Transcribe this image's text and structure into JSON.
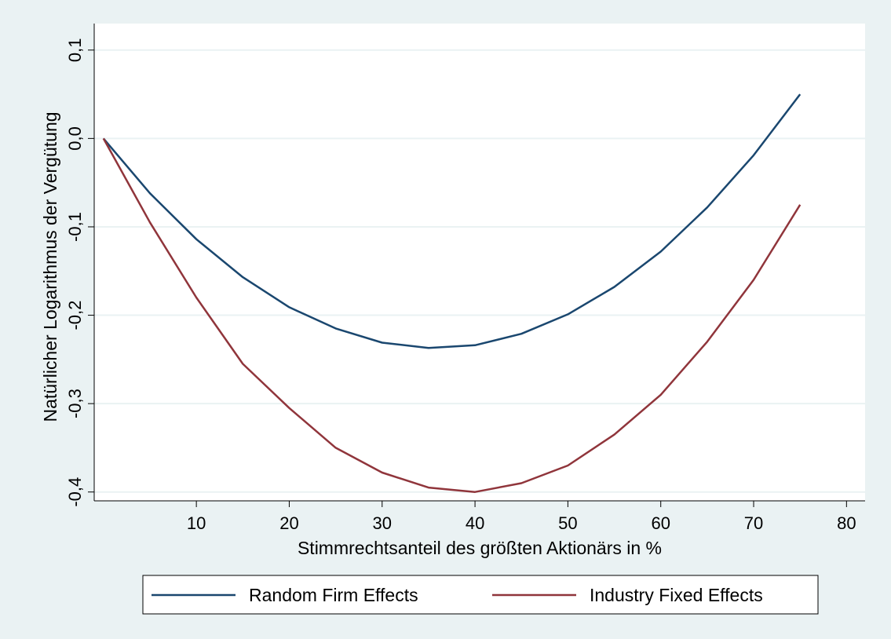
{
  "chart_data": {
    "type": "line",
    "title": "",
    "xlabel": "Stimmrechtsanteil des größten Aktionärs in %",
    "ylabel": "Natürlicher Logarithmus der Vergütung",
    "xlim": [
      -1,
      82
    ],
    "ylim": [
      -0.41,
      0.13
    ],
    "x_ticks": [
      10,
      20,
      30,
      40,
      50,
      60,
      70,
      80
    ],
    "x_tick_labels": [
      "10",
      "20",
      "30",
      "40",
      "50",
      "60",
      "70",
      "80"
    ],
    "y_ticks": [
      0.1,
      0.0,
      -0.1,
      -0.2,
      -0.3,
      -0.4
    ],
    "y_tick_labels": [
      "0,1",
      "0,0",
      "-0,1",
      "-0,2",
      "-0,3",
      "-0,4"
    ],
    "grid": true,
    "legend_position": "bottom",
    "series": [
      {
        "name": "Random Firm Effects",
        "color": "#1a476f",
        "x": [
          0,
          5,
          10,
          15,
          20,
          25,
          30,
          35,
          40,
          45,
          50,
          55,
          60,
          65,
          70,
          75
        ],
        "y": [
          0.0,
          -0.062,
          -0.114,
          -0.157,
          -0.191,
          -0.215,
          -0.231,
          -0.237,
          -0.234,
          -0.221,
          -0.199,
          -0.168,
          -0.128,
          -0.078,
          -0.019,
          0.05
        ]
      },
      {
        "name": "Industry Fixed Effects",
        "color": "#90353b",
        "x": [
          0,
          5,
          10,
          15,
          20,
          25,
          30,
          35,
          40,
          45,
          50,
          55,
          60,
          65,
          70,
          75
        ],
        "y": [
          0.0,
          -0.095,
          -0.18,
          -0.255,
          -0.305,
          -0.35,
          -0.378,
          -0.395,
          -0.4,
          -0.39,
          -0.37,
          -0.335,
          -0.29,
          -0.23,
          -0.16,
          -0.075
        ]
      }
    ]
  }
}
